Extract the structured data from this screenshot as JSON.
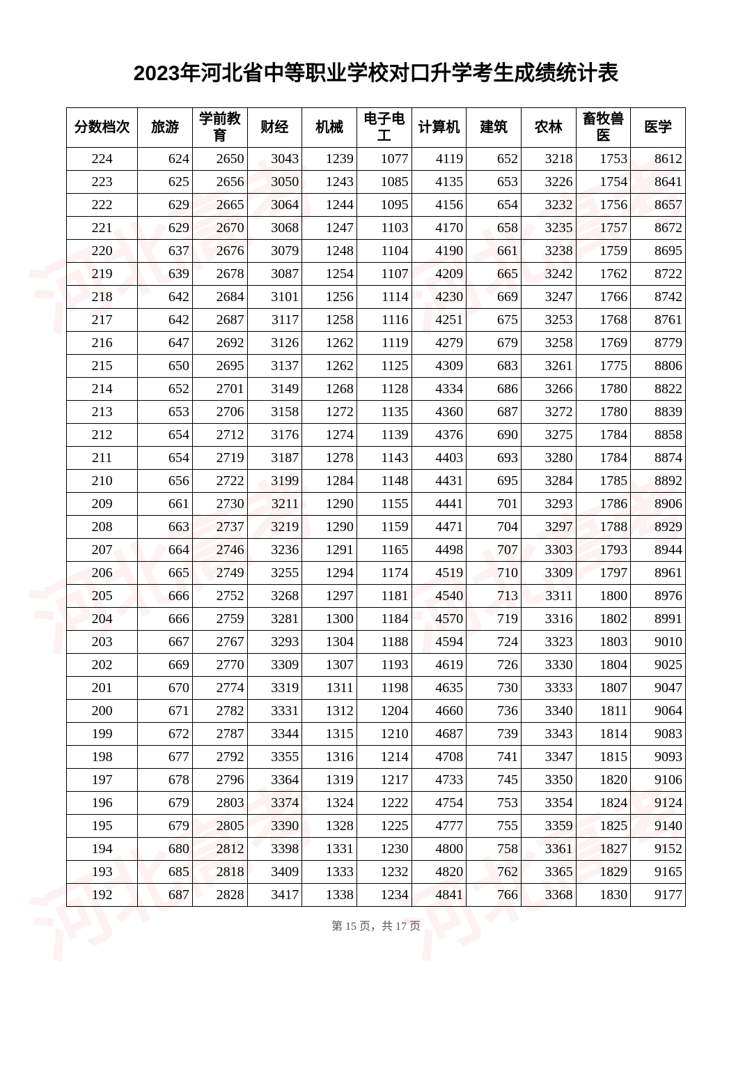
{
  "title": "2023年河北省中等职业学校对口升学考生成绩统计表",
  "footer": "第 15 页，共 17 页",
  "watermark_text": "河北高考",
  "table": {
    "columns": [
      "分数档次",
      "旅游",
      "学前教育",
      "财经",
      "机械",
      "电子电工",
      "计算机",
      "建筑",
      "农林",
      "畜牧兽医",
      "医学"
    ],
    "col_widths": [
      "11.5%",
      "8.85%",
      "8.85%",
      "8.85%",
      "8.85%",
      "8.85%",
      "8.85%",
      "8.85%",
      "8.85%",
      "8.85%",
      "8.85%"
    ],
    "rows": [
      [
        224,
        624,
        2650,
        3043,
        1239,
        1077,
        4119,
        652,
        3218,
        1753,
        8612
      ],
      [
        223,
        625,
        2656,
        3050,
        1243,
        1085,
        4135,
        653,
        3226,
        1754,
        8641
      ],
      [
        222,
        629,
        2665,
        3064,
        1244,
        1095,
        4156,
        654,
        3232,
        1756,
        8657
      ],
      [
        221,
        629,
        2670,
        3068,
        1247,
        1103,
        4170,
        658,
        3235,
        1757,
        8672
      ],
      [
        220,
        637,
        2676,
        3079,
        1248,
        1104,
        4190,
        661,
        3238,
        1759,
        8695
      ],
      [
        219,
        639,
        2678,
        3087,
        1254,
        1107,
        4209,
        665,
        3242,
        1762,
        8722
      ],
      [
        218,
        642,
        2684,
        3101,
        1256,
        1114,
        4230,
        669,
        3247,
        1766,
        8742
      ],
      [
        217,
        642,
        2687,
        3117,
        1258,
        1116,
        4251,
        675,
        3253,
        1768,
        8761
      ],
      [
        216,
        647,
        2692,
        3126,
        1262,
        1119,
        4279,
        679,
        3258,
        1769,
        8779
      ],
      [
        215,
        650,
        2695,
        3137,
        1262,
        1125,
        4309,
        683,
        3261,
        1775,
        8806
      ],
      [
        214,
        652,
        2701,
        3149,
        1268,
        1128,
        4334,
        686,
        3266,
        1780,
        8822
      ],
      [
        213,
        653,
        2706,
        3158,
        1272,
        1135,
        4360,
        687,
        3272,
        1780,
        8839
      ],
      [
        212,
        654,
        2712,
        3176,
        1274,
        1139,
        4376,
        690,
        3275,
        1784,
        8858
      ],
      [
        211,
        654,
        2719,
        3187,
        1278,
        1143,
        4403,
        693,
        3280,
        1784,
        8874
      ],
      [
        210,
        656,
        2722,
        3199,
        1284,
        1148,
        4431,
        695,
        3284,
        1785,
        8892
      ],
      [
        209,
        661,
        2730,
        3211,
        1290,
        1155,
        4441,
        701,
        3293,
        1786,
        8906
      ],
      [
        208,
        663,
        2737,
        3219,
        1290,
        1159,
        4471,
        704,
        3297,
        1788,
        8929
      ],
      [
        207,
        664,
        2746,
        3236,
        1291,
        1165,
        4498,
        707,
        3303,
        1793,
        8944
      ],
      [
        206,
        665,
        2749,
        3255,
        1294,
        1174,
        4519,
        710,
        3309,
        1797,
        8961
      ],
      [
        205,
        666,
        2752,
        3268,
        1297,
        1181,
        4540,
        713,
        3311,
        1800,
        8976
      ],
      [
        204,
        666,
        2759,
        3281,
        1300,
        1184,
        4570,
        719,
        3316,
        1802,
        8991
      ],
      [
        203,
        667,
        2767,
        3293,
        1304,
        1188,
        4594,
        724,
        3323,
        1803,
        9010
      ],
      [
        202,
        669,
        2770,
        3309,
        1307,
        1193,
        4619,
        726,
        3330,
        1804,
        9025
      ],
      [
        201,
        670,
        2774,
        3319,
        1311,
        1198,
        4635,
        730,
        3333,
        1807,
        9047
      ],
      [
        200,
        671,
        2782,
        3331,
        1312,
        1204,
        4660,
        736,
        3340,
        1811,
        9064
      ],
      [
        199,
        672,
        2787,
        3344,
        1315,
        1210,
        4687,
        739,
        3343,
        1814,
        9083
      ],
      [
        198,
        677,
        2792,
        3355,
        1316,
        1214,
        4708,
        741,
        3347,
        1815,
        9093
      ],
      [
        197,
        678,
        2796,
        3364,
        1319,
        1217,
        4733,
        745,
        3350,
        1820,
        9106
      ],
      [
        196,
        679,
        2803,
        3374,
        1324,
        1222,
        4754,
        753,
        3354,
        1824,
        9124
      ],
      [
        195,
        679,
        2805,
        3390,
        1328,
        1225,
        4777,
        755,
        3359,
        1825,
        9140
      ],
      [
        194,
        680,
        2812,
        3398,
        1331,
        1230,
        4800,
        758,
        3361,
        1827,
        9152
      ],
      [
        193,
        685,
        2818,
        3409,
        1333,
        1232,
        4820,
        762,
        3365,
        1829,
        9165
      ],
      [
        192,
        687,
        2828,
        3417,
        1338,
        1234,
        4841,
        766,
        3368,
        1830,
        9177
      ]
    ]
  },
  "style": {
    "title_fontsize": 30,
    "cell_fontsize": 20,
    "border_color": "#000000",
    "background_color": "#ffffff",
    "watermark_color": "rgba(220,60,60,0.07)"
  }
}
